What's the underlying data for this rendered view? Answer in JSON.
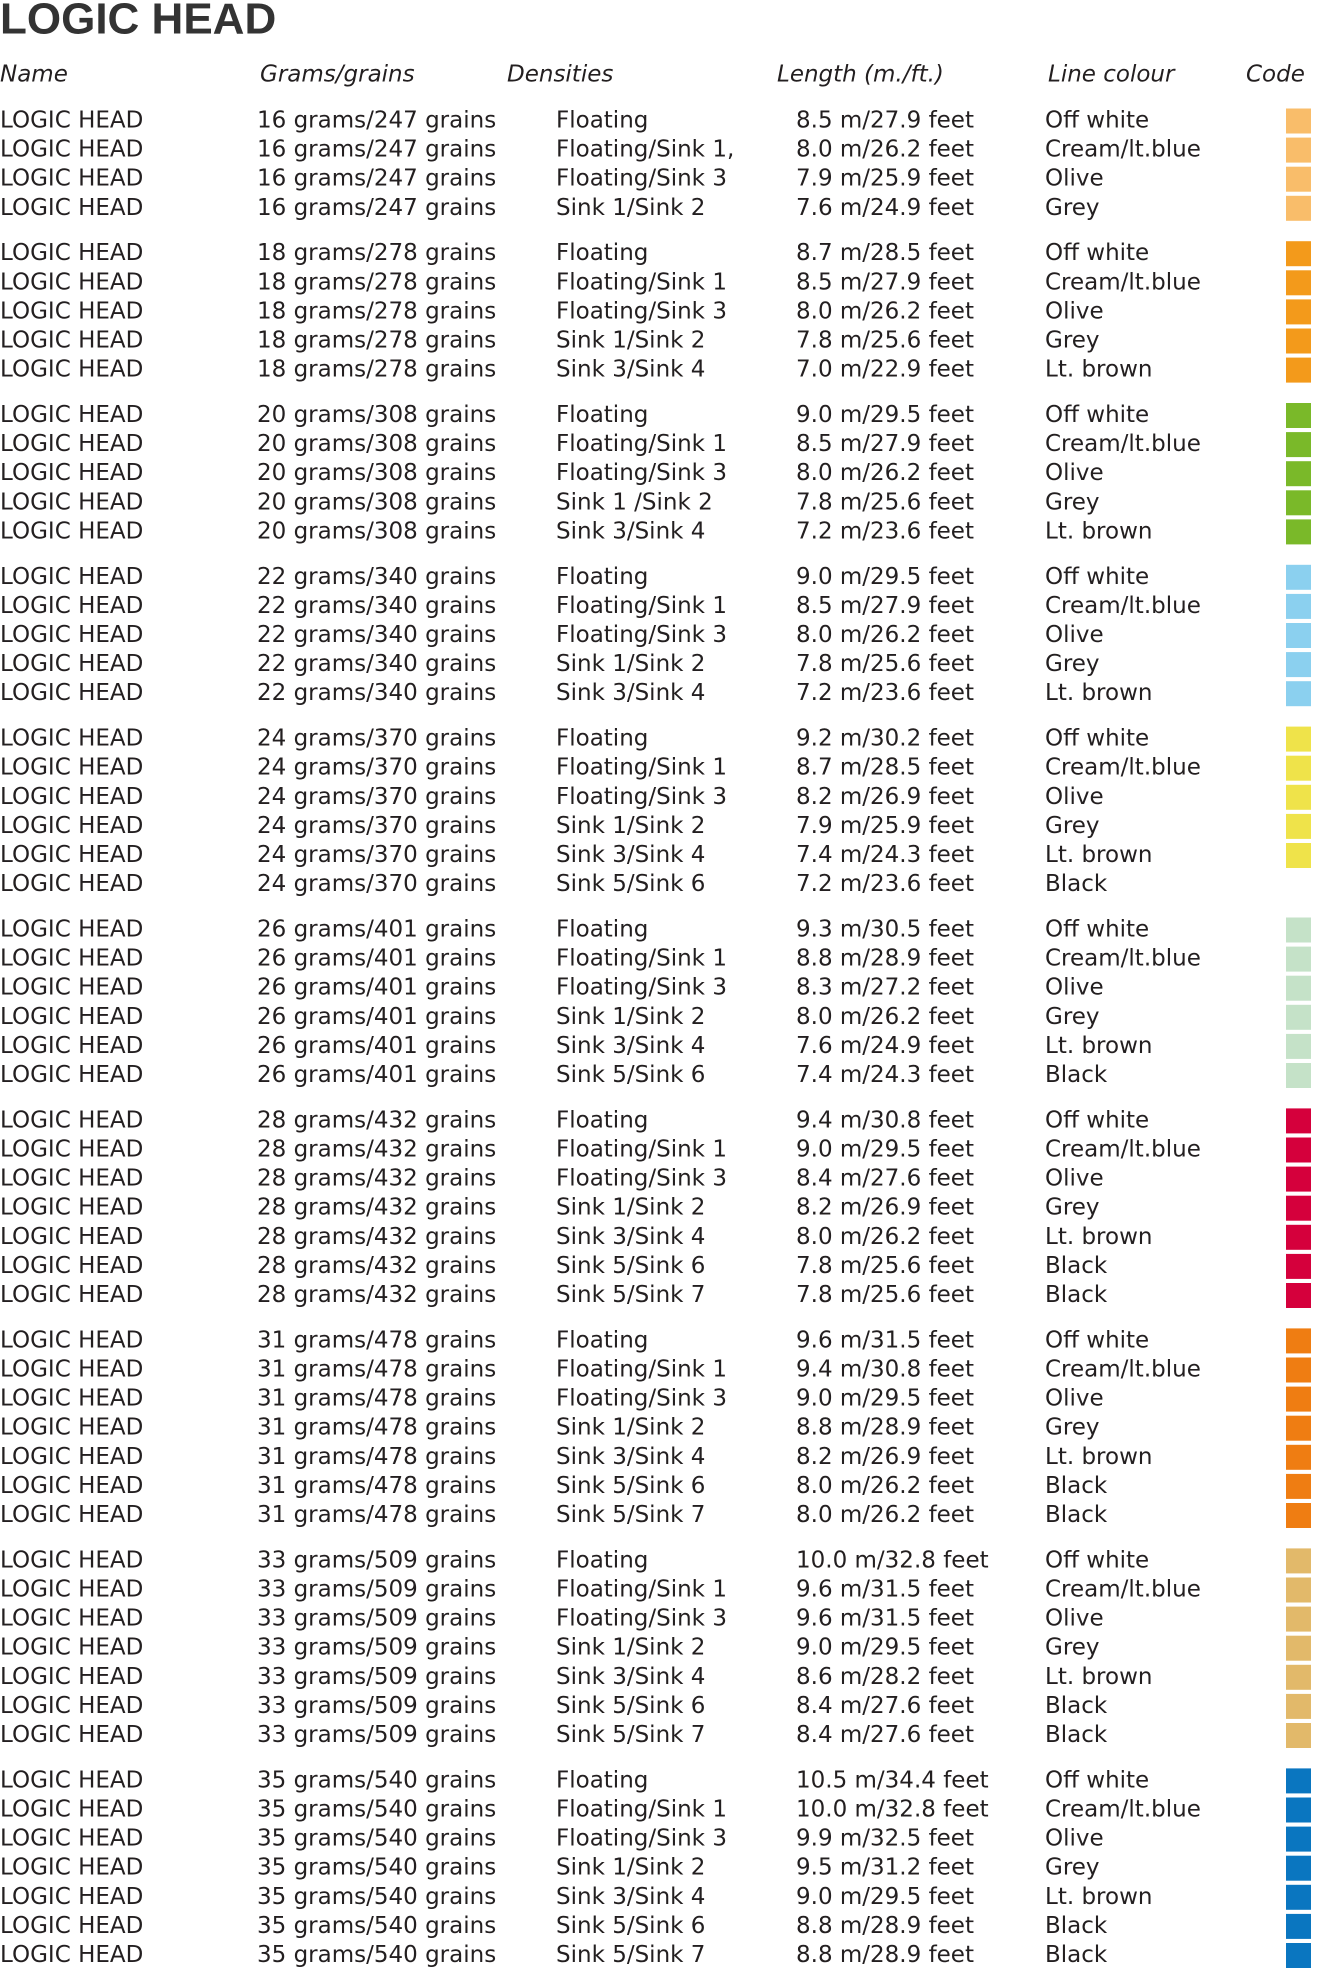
{
  "title": "LOGIC HEAD",
  "headers": [
    "Name",
    "Grams/grains",
    "Densities",
    "Length (m./ft.)",
    "Line colour",
    "Code"
  ],
  "groups": [
    {
      "rows": [
        [
          "LOGIC HEAD",
          "16 grams/247 grains",
          "Floating",
          "8.5 m/27.9 feet",
          "Off white",
          "#f9bd6a"
        ],
        [
          "LOGIC HEAD",
          "16 grams/247 grains",
          "Floating/Sink 1,",
          "8.0 m/26.2 feet",
          "Cream/lt.blue",
          "#f9bd6a"
        ],
        [
          "LOGIC HEAD",
          "16 grams/247 grains",
          "Floating/Sink 3",
          "7.9 m/25.9 feet",
          "Olive",
          "#f9bd6a"
        ],
        [
          "LOGIC HEAD",
          "16 grams/247 grains",
          "Sink 1/Sink 2",
          "7.6 m/24.9 feet",
          "Grey",
          "#f9bd6a"
        ]
      ]
    },
    {
      "rows": [
        [
          "LOGIC HEAD",
          "18 grams/278 grains",
          "Floating",
          "8.7 m/28.5 feet",
          "Off white",
          "#f39a1b"
        ],
        [
          "LOGIC HEAD",
          "18 grams/278 grains",
          "Floating/Sink 1",
          "8.5 m/27.9 feet",
          "Cream/lt.blue",
          "#f39a1b"
        ],
        [
          "LOGIC HEAD",
          "18 grams/278 grains",
          "Floating/Sink 3",
          "8.0 m/26.2 feet",
          "Olive",
          "#f39a1b"
        ],
        [
          "LOGIC HEAD",
          "18 grams/278 grains",
          "Sink 1/Sink 2",
          "7.8 m/25.6 feet",
          "Grey",
          "#f39a1b"
        ],
        [
          "LOGIC HEAD",
          "18 grams/278 grains",
          "Sink 3/Sink 4",
          "7.0 m/22.9 feet",
          "Lt. brown",
          "#f39a1b"
        ]
      ]
    },
    {
      "rows": [
        [
          "LOGIC HEAD",
          "20 grams/308 grains",
          "Floating",
          "9.0 m/29.5 feet",
          "Off white",
          "#7ab929"
        ],
        [
          "LOGIC HEAD",
          "20 grams/308 grains",
          "Floating/Sink 1",
          "8.5 m/27.9 feet",
          "Cream/lt.blue",
          "#7ab929"
        ],
        [
          "LOGIC HEAD",
          "20 grams/308 grains",
          "Floating/Sink 3",
          "8.0 m/26.2 feet",
          "Olive",
          "#7ab929"
        ],
        [
          "LOGIC HEAD",
          "20 grams/308 grains",
          "Sink 1 /Sink 2",
          "7.8 m/25.6 feet",
          "Grey",
          "#7ab929"
        ],
        [
          "LOGIC HEAD",
          "20 grams/308 grains",
          "Sink 3/Sink 4",
          "7.2 m/23.6 feet",
          "Lt. brown",
          "#7ab929"
        ]
      ]
    },
    {
      "rows": [
        [
          "LOGIC HEAD",
          "22 grams/340 grains",
          "Floating",
          "9.0 m/29.5 feet",
          "Off white",
          "#8bd0ef"
        ],
        [
          "LOGIC HEAD",
          "22 grams/340 grains",
          "Floating/Sink 1",
          "8.5 m/27.9 feet",
          "Cream/lt.blue",
          "#8bd0ef"
        ],
        [
          "LOGIC HEAD",
          "22 grams/340 grains",
          "Floating/Sink 3",
          "8.0 m/26.2 feet",
          "Olive",
          "#8bd0ef"
        ],
        [
          "LOGIC HEAD",
          "22 grams/340 grains",
          "Sink 1/Sink 2",
          "7.8 m/25.6 feet",
          "Grey",
          "#8bd0ef"
        ],
        [
          "LOGIC HEAD",
          "22 grams/340 grains",
          "Sink 3/Sink 4",
          "7.2 m/23.6 feet",
          "Lt. brown",
          "#8bd0ef"
        ]
      ]
    },
    {
      "rows": [
        [
          "LOGIC HEAD",
          "24 grams/370 grains",
          "Floating",
          "9.2 m/30.2 feet",
          "Off white",
          "#efe34a"
        ],
        [
          "LOGIC HEAD",
          "24 grams/370 grains",
          "Floating/Sink 1",
          "8.7 m/28.5 feet",
          "Cream/lt.blue",
          "#efe34a"
        ],
        [
          "LOGIC HEAD",
          "24 grams/370 grains",
          "Floating/Sink 3",
          "8.2 m/26.9 feet",
          "Olive",
          "#efe34a"
        ],
        [
          "LOGIC HEAD",
          "24 grams/370 grains",
          "Sink 1/Sink 2",
          "7.9 m/25.9 feet",
          "Grey",
          "#efe34a"
        ],
        [
          "LOGIC HEAD",
          "24 grams/370 grains",
          "Sink 3/Sink 4",
          "7.4 m/24.3 feet",
          "Lt. brown",
          "#efe34a"
        ],
        [
          "LOGIC HEAD",
          "24 grams/370 grains",
          "Sink 5/Sink 6",
          "7.2 m/23.6 feet",
          "Black",
          null
        ]
      ]
    },
    {
      "rows": [
        [
          "LOGIC HEAD",
          "26 grams/401 grains",
          "Floating",
          "9.3 m/30.5 feet",
          "Off white",
          "#c5e2c8"
        ],
        [
          "LOGIC HEAD",
          "26 grams/401 grains",
          "Floating/Sink 1",
          "8.8 m/28.9 feet",
          "Cream/lt.blue",
          "#c5e2c8"
        ],
        [
          "LOGIC HEAD",
          "26 grams/401 grains",
          "Floating/Sink 3",
          "8.3 m/27.2 feet",
          "Olive",
          "#c5e2c8"
        ],
        [
          "LOGIC HEAD",
          "26 grams/401 grains",
          "Sink 1/Sink 2",
          "8.0 m/26.2 feet",
          "Grey",
          "#c5e2c8"
        ],
        [
          "LOGIC HEAD",
          "26 grams/401 grains",
          "Sink 3/Sink 4",
          "7.6 m/24.9 feet",
          "Lt. brown",
          "#c5e2c8"
        ],
        [
          "LOGIC HEAD",
          "26 grams/401 grains",
          "Sink 5/Sink 6",
          "7.4 m/24.3 feet",
          "Black",
          "#c5e2c8"
        ]
      ]
    },
    {
      "rows": [
        [
          "LOGIC HEAD",
          "28 grams/432 grains",
          "Floating",
          "9.4 m/30.8 feet",
          "Off white",
          "#d5003c"
        ],
        [
          "LOGIC HEAD",
          "28 grams/432 grains",
          "Floating/Sink 1",
          "9.0 m/29.5 feet",
          "Cream/lt.blue",
          "#d5003c"
        ],
        [
          "LOGIC HEAD",
          "28 grams/432 grains",
          "Floating/Sink 3",
          "8.4 m/27.6 feet",
          "Olive",
          "#d5003c"
        ],
        [
          "LOGIC HEAD",
          "28 grams/432 grains",
          "Sink 1/Sink 2",
          "8.2 m/26.9 feet",
          "Grey",
          "#d5003c"
        ],
        [
          "LOGIC HEAD",
          "28 grams/432 grains",
          "Sink 3/Sink 4",
          "8.0 m/26.2 feet",
          "Lt. brown",
          "#d5003c"
        ],
        [
          "LOGIC HEAD",
          "28 grams/432 grains",
          "Sink 5/Sink 6",
          "7.8 m/25.6 feet",
          "Black",
          "#d5003c"
        ],
        [
          "LOGIC HEAD",
          "28 grams/432 grains",
          "Sink 5/Sink 7",
          "7.8 m/25.6 feet",
          "Black",
          "#d5003c"
        ]
      ]
    },
    {
      "rows": [
        [
          "LOGIC HEAD",
          "31 grams/478 grains",
          "Floating",
          "9.6 m/31.5 feet",
          "Off white",
          "#ef7d12"
        ],
        [
          "LOGIC HEAD",
          "31 grams/478 grains",
          "Floating/Sink 1",
          "9.4 m/30.8 feet",
          "Cream/lt.blue",
          "#ef7d12"
        ],
        [
          "LOGIC HEAD",
          "31 grams/478 grains",
          "Floating/Sink 3",
          "9.0 m/29.5 feet",
          "Olive",
          "#ef7d12"
        ],
        [
          "LOGIC HEAD",
          "31 grams/478 grains",
          "Sink 1/Sink 2",
          "8.8 m/28.9 feet",
          "Grey",
          "#ef7d12"
        ],
        [
          "LOGIC HEAD",
          "31 grams/478 grains",
          "Sink 3/Sink 4",
          "8.2 m/26.9 feet",
          "Lt. brown",
          "#ef7d12"
        ],
        [
          "LOGIC HEAD",
          "31 grams/478 grains",
          "Sink 5/Sink 6",
          "8.0 m/26.2 feet",
          "Black",
          "#ef7d12"
        ],
        [
          "LOGIC HEAD",
          "31 grams/478 grains",
          "Sink 5/Sink 7",
          "8.0 m/26.2 feet",
          "Black",
          "#ef7d12"
        ]
      ]
    },
    {
      "rows": [
        [
          "LOGIC HEAD",
          "33 grams/509 grains",
          "Floating",
          "10.0 m/32.8 feet",
          "Off white",
          "#e2b96a"
        ],
        [
          "LOGIC HEAD",
          "33 grams/509 grains",
          "Floating/Sink 1",
          "9.6 m/31.5 feet",
          "Cream/lt.blue",
          "#e2b96a"
        ],
        [
          "LOGIC HEAD",
          "33 grams/509 grains",
          "Floating/Sink 3",
          "9.6 m/31.5 feet",
          "Olive",
          "#e2b96a"
        ],
        [
          "LOGIC HEAD",
          "33 grams/509 grains",
          "Sink 1/Sink 2",
          "9.0 m/29.5 feet",
          "Grey",
          "#e2b96a"
        ],
        [
          "LOGIC HEAD",
          "33 grams/509 grains",
          "Sink 3/Sink 4",
          "8.6 m/28.2 feet",
          "Lt. brown",
          "#e2b96a"
        ],
        [
          "LOGIC HEAD",
          "33 grams/509 grains",
          "Sink 5/Sink 6",
          "8.4 m/27.6 feet",
          "Black",
          "#e2b96a"
        ],
        [
          "LOGIC HEAD",
          "33 grams/509 grains",
          "Sink 5/Sink 7",
          "8.4 m/27.6 feet",
          "Black",
          "#e2b96a"
        ]
      ]
    },
    {
      "rows": [
        [
          "LOGIC HEAD",
          "35 grams/540 grains",
          "Floating",
          "10.5 m/34.4 feet",
          "Off white",
          "#0a76c0"
        ],
        [
          "LOGIC HEAD",
          "35 grams/540 grains",
          "Floating/Sink 1",
          "10.0 m/32.8 feet",
          "Cream/lt.blue",
          "#0a76c0"
        ],
        [
          "LOGIC HEAD",
          "35 grams/540 grains",
          "Floating/Sink 3",
          "9.9 m/32.5 feet",
          "Olive",
          "#0a76c0"
        ],
        [
          "LOGIC HEAD",
          "35 grams/540 grains",
          "Sink 1/Sink 2",
          "9.5 m/31.2 feet",
          "Grey",
          "#0a76c0"
        ],
        [
          "LOGIC HEAD",
          "35 grams/540 grains",
          "Sink 3/Sink 4",
          "9.0 m/29.5 feet",
          "Lt. brown",
          "#0a76c0"
        ],
        [
          "LOGIC HEAD",
          "35 grams/540 grains",
          "Sink 5/Sink 6",
          "8.8 m/28.9 feet",
          "Black",
          "#0a76c0"
        ],
        [
          "LOGIC HEAD",
          "35 grams/540 grains",
          "Sink 5/Sink 7",
          "8.8 m/28.9 feet",
          "Black",
          "#0a76c0"
        ]
      ]
    }
  ]
}
